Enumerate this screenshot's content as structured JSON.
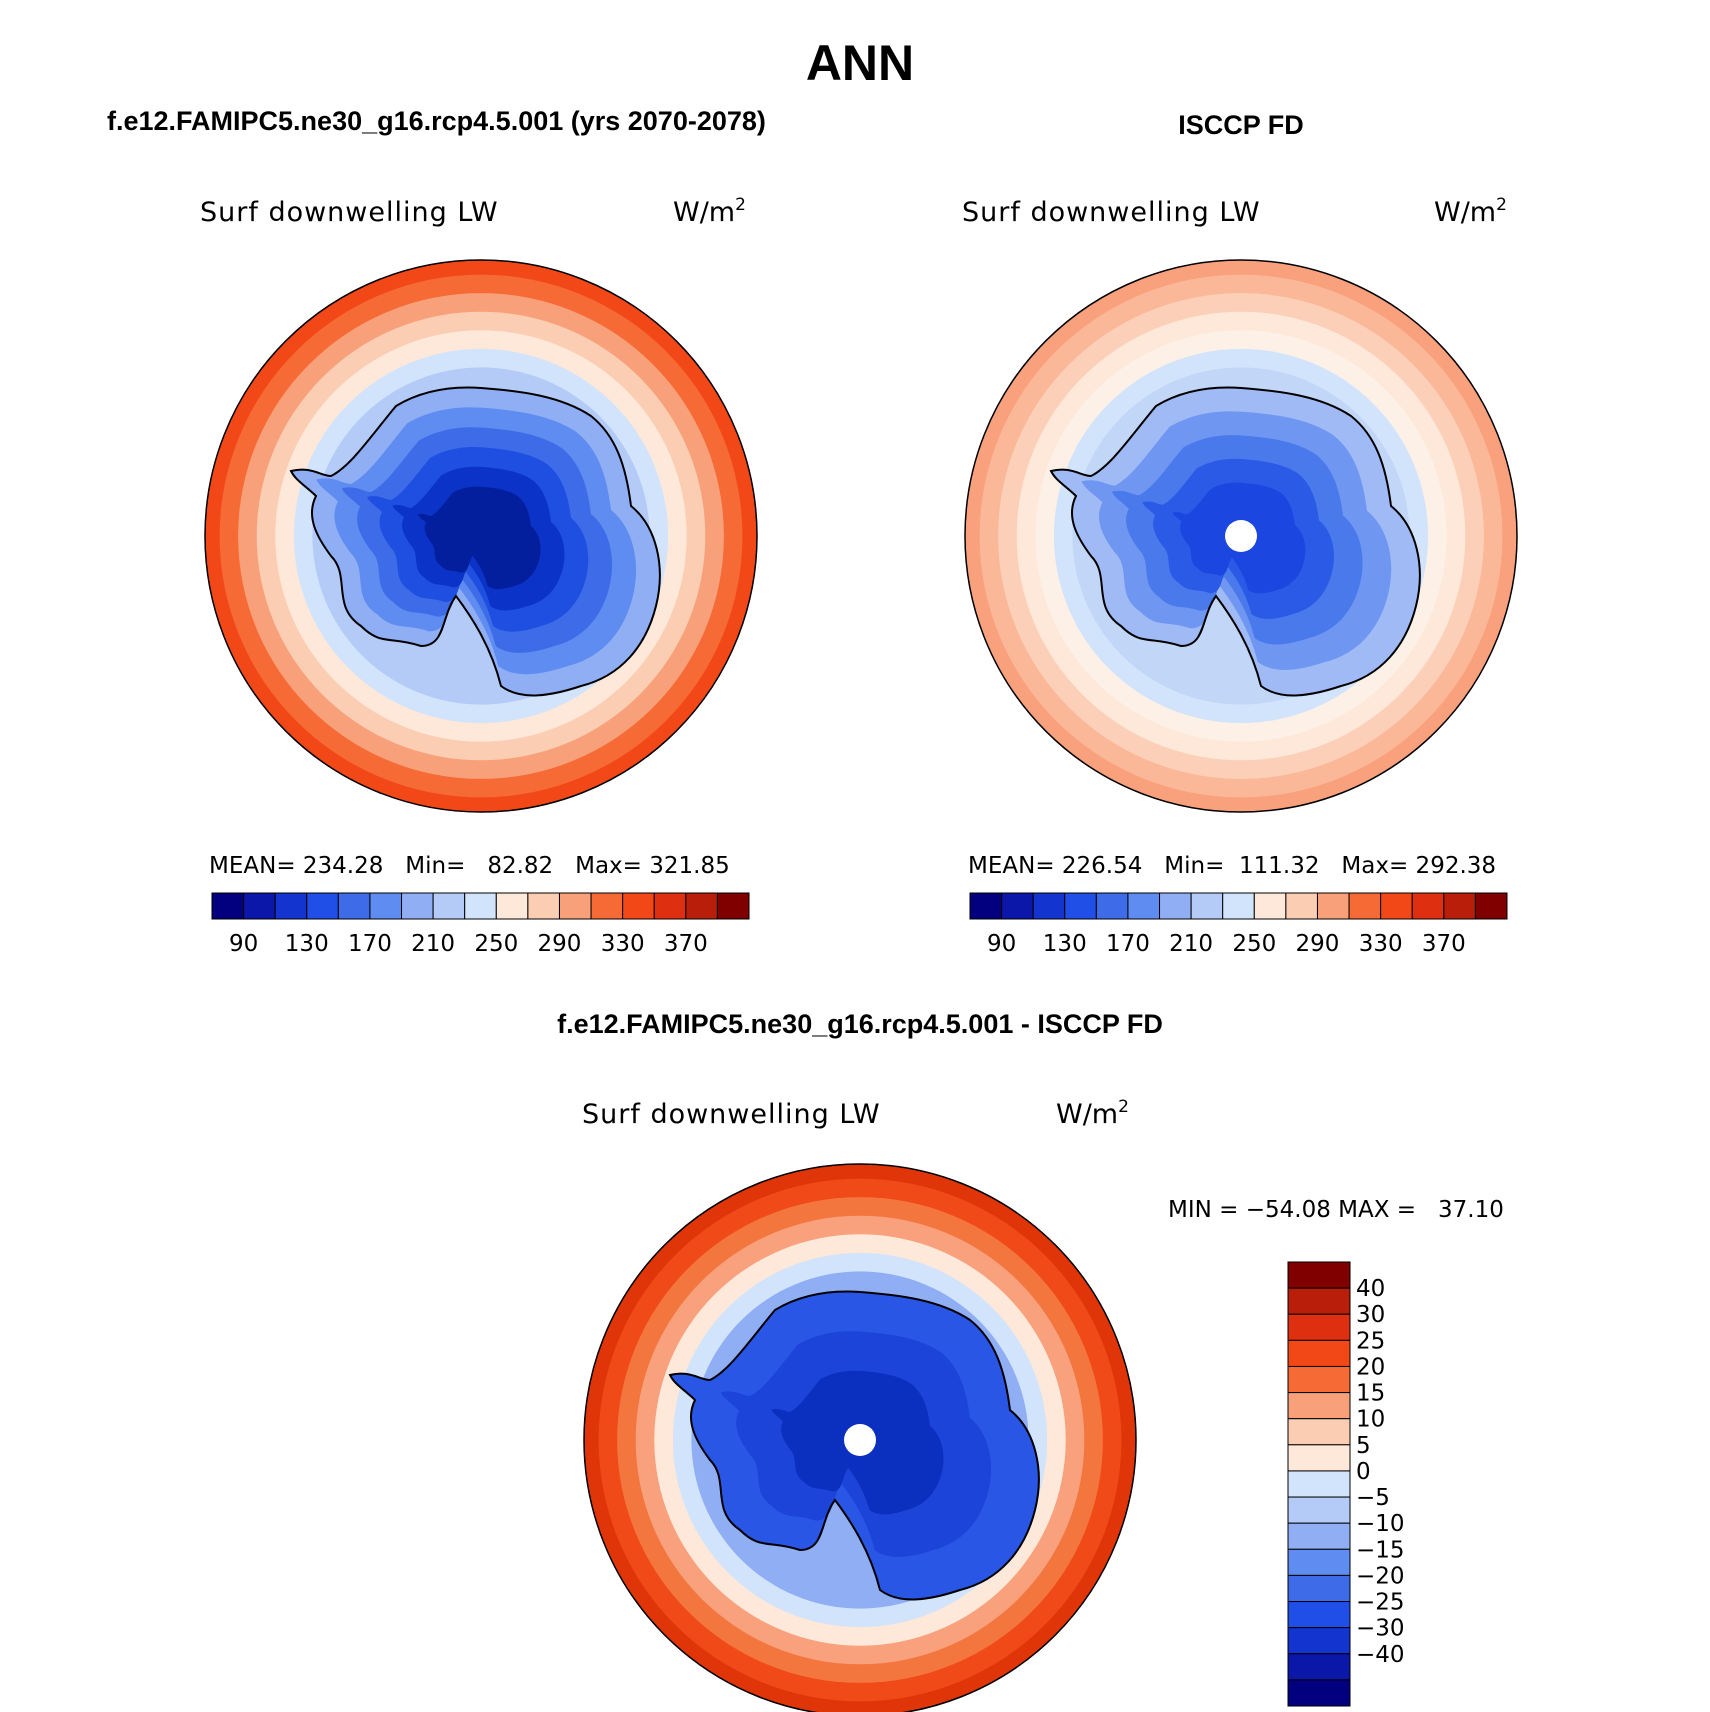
{
  "figure": {
    "title": "ANN",
    "units": "W/m",
    "units_exp": "2"
  },
  "panels": [
    {
      "heading": "f.e12.FAMIPC5.ne30_g16.rcp4.5.001 (yrs 2070-2078)",
      "field": "Surf downwelling LW",
      "stats": "MEAN= 234.28   Min=   82.82   Max= 321.85",
      "ocean_ring": [
        "#f24818",
        "#f66a35",
        "#f8a07a",
        "#fbcdb2",
        "#fde8d9",
        "#d2e4fb",
        "#b4cbf7"
      ],
      "land_ring": [
        "#8faef4",
        "#5f8cf0",
        "#3e6ce8",
        "#1f4fe0",
        "#0b33c8",
        "#041f9e"
      ],
      "pole_hole": false
    },
    {
      "heading": "ISCCP FD",
      "field": "Surf downwelling LW",
      "stats": "MEAN= 226.54   Min=  111.32   Max= 292.38",
      "ocean_ring": [
        "#f9a07c",
        "#fbb899",
        "#fcd0b8",
        "#fde8d9",
        "#fdf0e6",
        "#d2e4fb",
        "#c2d6f8"
      ],
      "land_ring": [
        "#9fbaf5",
        "#6f96f1",
        "#4a79ec",
        "#2a5ae6",
        "#1c46e0"
      ],
      "pole_hole": true
    },
    {
      "heading": "f.e12.FAMIPC5.ne30_g16.rcp4.5.001 - ISCCP FD",
      "field": "Surf downwelling LW",
      "stats": "MIN = −54.08 MAX =   37.10",
      "ocean_ring": [
        "#e03508",
        "#f04a18",
        "#f4763f",
        "#f9a07c",
        "#fde8d9",
        "#d2e4fb",
        "#8faef4"
      ],
      "land_ring": [
        "#2a56e6",
        "#1c44d8",
        "#0b30c0"
      ],
      "pole_hole": true
    }
  ],
  "colorbar_abs": {
    "colors": [
      "#02007e",
      "#0a17a8",
      "#1434cf",
      "#1f4fe6",
      "#3e6ce8",
      "#5f8cf0",
      "#8faef4",
      "#b4cbf7",
      "#d2e4fb",
      "#fde8d9",
      "#fbcdb2",
      "#f8a07a",
      "#f66a35",
      "#f24818",
      "#de3010",
      "#b81e0a",
      "#800000"
    ],
    "labels": [
      "90",
      "130",
      "170",
      "210",
      "250",
      "290",
      "330",
      "370"
    ]
  },
  "colorbar_diff": {
    "colors": [
      "#02007e",
      "#0a17a8",
      "#1434cf",
      "#1f4fe6",
      "#3e6ce8",
      "#5f8cf0",
      "#8faef4",
      "#b4cbf7",
      "#d2e4fb",
      "#fde8d9",
      "#fbcdb2",
      "#f8a07a",
      "#f66a35",
      "#f24818",
      "#de3010",
      "#b81e0a",
      "#800000"
    ],
    "labels": [
      "40",
      "30",
      "25",
      "20",
      "15",
      "10",
      "5",
      "0",
      "−5",
      "−10",
      "−15",
      "−20",
      "−25",
      "−30",
      "−40"
    ]
  }
}
